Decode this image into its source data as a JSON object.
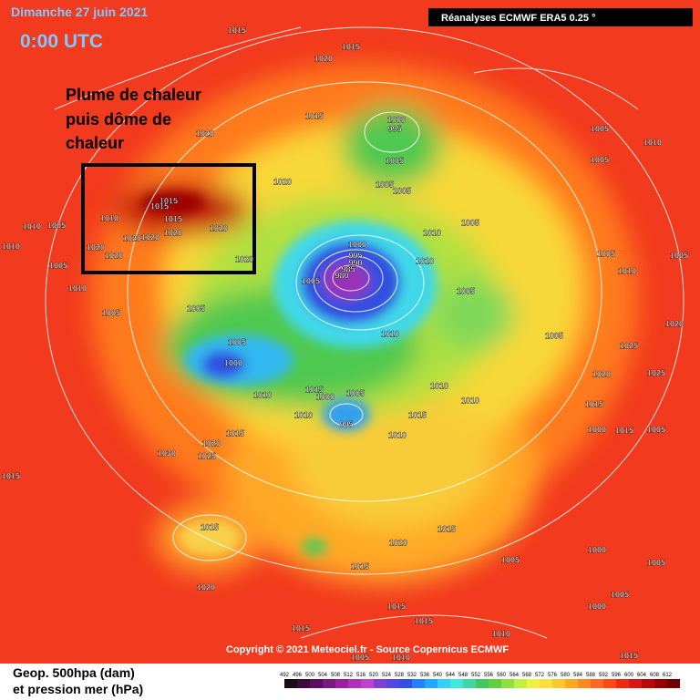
{
  "header": {
    "date": "Dimanche 27 juin 2021",
    "time": "0:00 UTC",
    "source_badge": "Réanalyses ECMWF ERA5 0.25 °"
  },
  "annotation": {
    "lines": [
      "Plume de chaleur",
      "puis dôme de",
      "chaleur"
    ]
  },
  "footer": {
    "copyright": "Copyright © 2021 Meteociel.fr - Source Copernicus ECMWF",
    "legend_lines": [
      "Geop. 500hpa (dam)",
      "et pression mer (hPa)"
    ]
  },
  "scale": {
    "values": [
      492,
      496,
      500,
      504,
      508,
      512,
      516,
      520,
      524,
      528,
      532,
      536,
      540,
      544,
      548,
      552,
      556,
      560,
      564,
      568,
      572,
      576,
      580,
      584,
      588,
      592,
      596,
      600,
      604,
      608,
      612
    ],
    "colors": [
      "#1a0a1a",
      "#3a0a3a",
      "#5a1060",
      "#7a1a80",
      "#9a20a0",
      "#b030b8",
      "#c040d0",
      "#8040d8",
      "#5048e0",
      "#3050e8",
      "#2080ff",
      "#20a8ff",
      "#30d0ff",
      "#40e8e0",
      "#40d8a0",
      "#40c860",
      "#60d040",
      "#90e040",
      "#c0f040",
      "#f0f040",
      "#f8e040",
      "#ffc830",
      "#ffa820",
      "#ff8820",
      "#ff6820",
      "#ff4818",
      "#f02810",
      "#d81810",
      "#b80808",
      "#980000",
      "#700000"
    ]
  },
  "pressure_labels": [
    1015,
    1020,
    1015,
    1015,
    1020,
    1000,
    995,
    1005,
    1005,
    1005,
    1020,
    1015,
    1015,
    1015,
    1010,
    1020,
    1020,
    1020,
    1020,
    1020,
    1020,
    1020,
    1010,
    1005,
    1010,
    1005,
    1010,
    1005,
    1005,
    1005,
    1000,
    1000,
    995,
    990,
    985,
    980,
    1005,
    1010,
    1010,
    1005,
    1005,
    1010,
    1010,
    1010,
    1015,
    1000,
    1005,
    995,
    1010,
    1010,
    1015,
    1010,
    1015,
    1020,
    1025,
    1030,
    1015,
    1015,
    1020,
    1015,
    1020,
    1015,
    1015,
    1005,
    1010,
    1010,
    1015,
    1015,
    1005,
    1010,
    1005,
    1005,
    1005,
    1010,
    1005,
    1000,
    1005,
    1005,
    1000,
    1005,
    1015,
    1020,
    1025,
    1020,
    1025,
    1015,
    1000,
    1015,
    1005
  ]
}
